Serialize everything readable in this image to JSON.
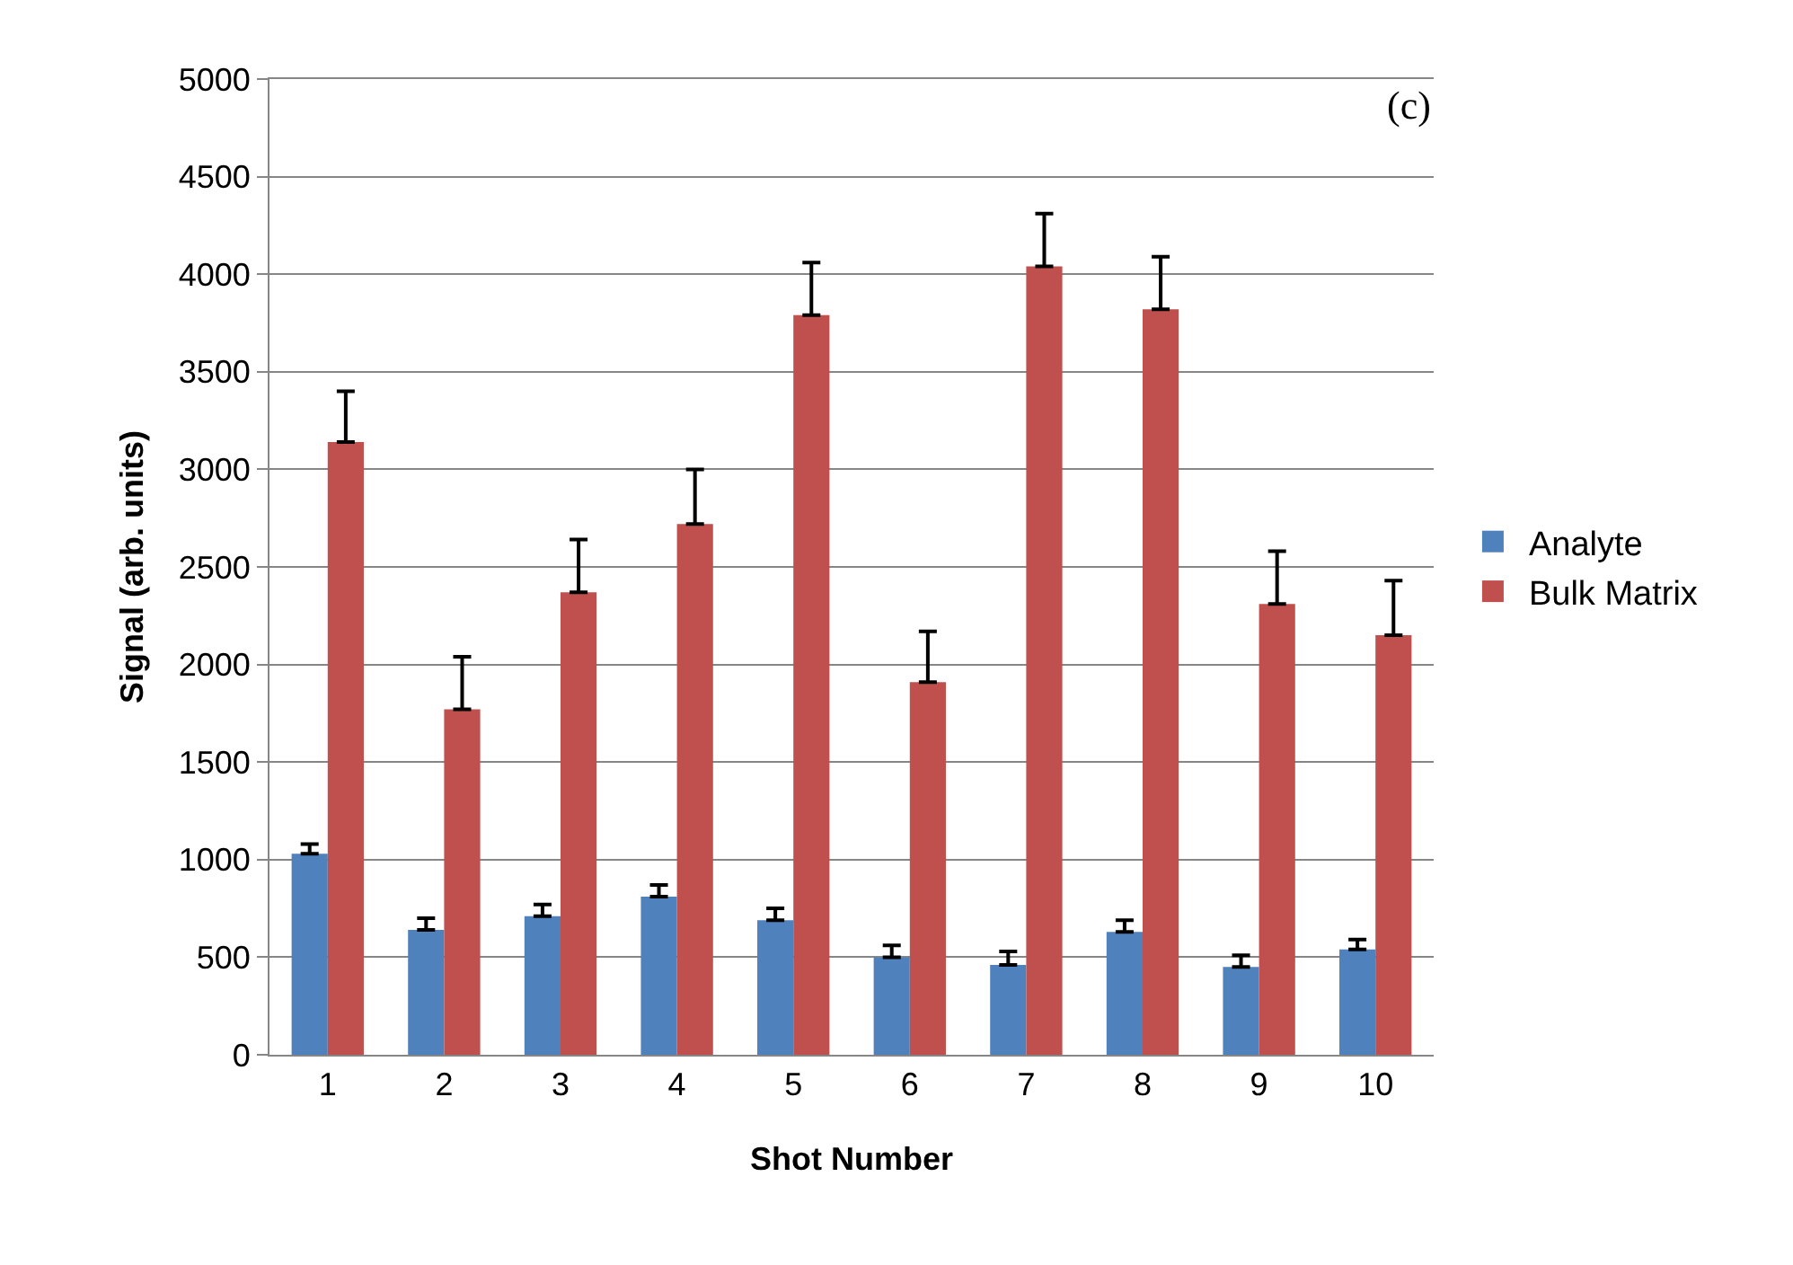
{
  "chart_data": {
    "type": "bar",
    "xlabel": "Shot Number",
    "ylabel": "Signal (arb. units)",
    "categories": [
      "1",
      "2",
      "3",
      "4",
      "5",
      "6",
      "7",
      "8",
      "9",
      "10"
    ],
    "series": [
      {
        "name": "Analyte",
        "color": "#4f81bd",
        "values": [
          1030,
          640,
          710,
          810,
          690,
          500,
          460,
          630,
          450,
          540
        ],
        "errors": [
          [
            1030,
            1080
          ],
          [
            640,
            700
          ],
          [
            710,
            770
          ],
          [
            810,
            870
          ],
          [
            690,
            750
          ],
          [
            500,
            560
          ],
          [
            460,
            530
          ],
          [
            630,
            690
          ],
          [
            450,
            510
          ],
          [
            540,
            590
          ]
        ]
      },
      {
        "name": "Bulk Matrix",
        "color": "#c0504d",
        "values": [
          3140,
          1770,
          2370,
          2720,
          3790,
          1910,
          4040,
          3820,
          2310,
          2150
        ],
        "errors": [
          [
            3140,
            3400
          ],
          [
            1770,
            2040
          ],
          [
            2370,
            2640
          ],
          [
            2720,
            3000
          ],
          [
            3790,
            4060
          ],
          [
            1910,
            2170
          ],
          [
            4040,
            4310
          ],
          [
            3820,
            4090
          ],
          [
            2310,
            2580
          ],
          [
            2150,
            2430
          ]
        ]
      }
    ],
    "ylim": [
      0,
      5000
    ],
    "yticks": [
      0,
      500,
      1000,
      1500,
      2000,
      2500,
      3000,
      3500,
      4000,
      4500,
      5000
    ],
    "grid": "y",
    "legend": "right",
    "annotations": [
      "(c)"
    ]
  }
}
